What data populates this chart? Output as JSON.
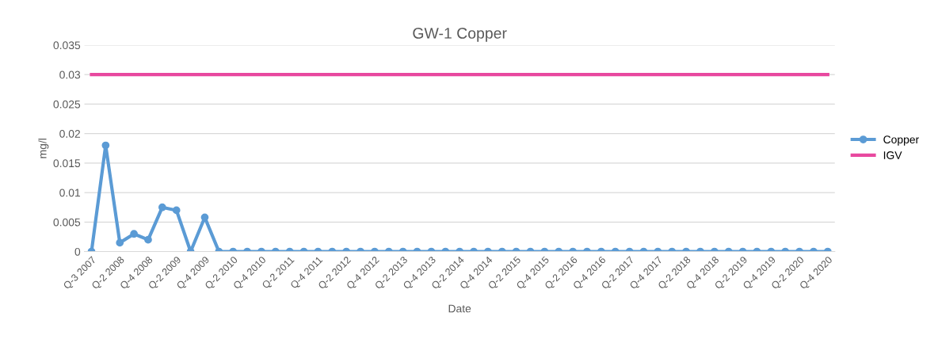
{
  "chart_data": {
    "type": "line",
    "title": "GW-1 Copper",
    "xlabel": "Date",
    "ylabel": "mg/l",
    "categories": [
      "Q-3 2007",
      null,
      "Q-2 2008",
      null,
      "Q-4 2008",
      null,
      "Q-2 2009",
      null,
      "Q-4 2009",
      null,
      "Q-2 2010",
      null,
      "Q-4 2010",
      null,
      "Q-2 2011",
      null,
      "Q-4 2011",
      null,
      "Q-2 2012",
      null,
      "Q-4 2012",
      null,
      "Q-2 2013",
      null,
      "Q-4 2013",
      null,
      "Q-2 2014",
      null,
      "Q-4 2014",
      null,
      "Q-2 2015",
      null,
      "Q-4 2015",
      null,
      "Q-2 2016",
      null,
      "Q-4 2016",
      null,
      "Q-2 2017",
      null,
      "Q-4 2017",
      null,
      "Q-2 2018",
      null,
      "Q-4 2018",
      null,
      "Q-2 2019",
      null,
      "Q-4 2019",
      null,
      "Q-2 2020",
      null,
      "Q-4 2020"
    ],
    "series": [
      {
        "name": "Copper",
        "color": "#5b9bd5",
        "marker": "circle",
        "values": [
          0,
          0.018,
          0.0015,
          0.003,
          0.002,
          0.0075,
          0.007,
          0,
          0.0058,
          0,
          0,
          0,
          0,
          0,
          0,
          0,
          0,
          0,
          0,
          0,
          0,
          0,
          0,
          0,
          0,
          0,
          0,
          0,
          0,
          0,
          0,
          0,
          0,
          0,
          0,
          0,
          0,
          0,
          0,
          0,
          0,
          0,
          0,
          0,
          0,
          0,
          0,
          0,
          0,
          0,
          0,
          0,
          0
        ]
      },
      {
        "name": "IGV",
        "color": "#e8489f",
        "marker": "none",
        "values": [
          0.03,
          0.03,
          0.03,
          0.03,
          0.03,
          0.03,
          0.03,
          0.03,
          0.03,
          0.03,
          0.03,
          0.03,
          0.03,
          0.03,
          0.03,
          0.03,
          0.03,
          0.03,
          0.03,
          0.03,
          0.03,
          0.03,
          0.03,
          0.03,
          0.03,
          0.03,
          0.03,
          0.03,
          0.03,
          0.03,
          0.03,
          0.03,
          0.03,
          0.03,
          0.03,
          0.03,
          0.03,
          0.03,
          0.03,
          0.03,
          0.03,
          0.03,
          0.03,
          0.03,
          0.03,
          0.03,
          0.03,
          0.03,
          0.03,
          0.03,
          0.03,
          0.03,
          0.03
        ]
      }
    ],
    "ylim": [
      0,
      0.035
    ],
    "yticks": [
      0,
      0.005,
      0.01,
      0.015,
      0.02,
      0.025,
      0.03,
      0.035
    ],
    "grid": "y",
    "legend": "right",
    "line_style": "solid"
  }
}
